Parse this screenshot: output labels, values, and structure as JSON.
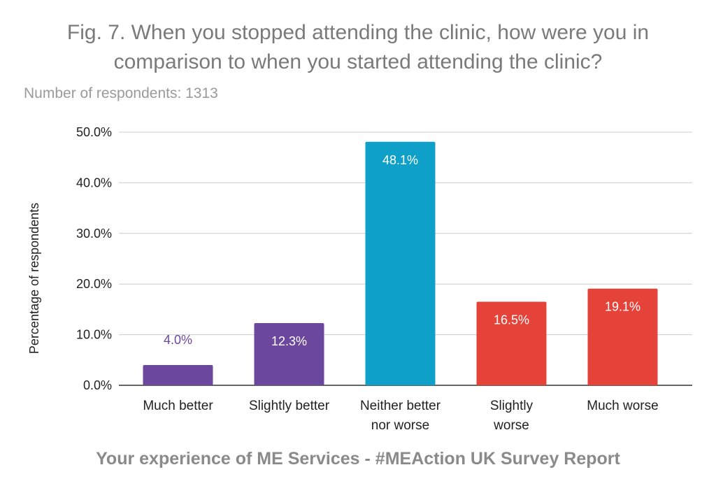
{
  "chart_data": {
    "type": "bar",
    "title": "Fig. 7. When you stopped attending the clinic, how were you in comparison to when you started attending the clinic?",
    "subtitle": "Number of respondents: 1313",
    "ylabel": "Percentage of respondents",
    "xlabel": "",
    "ylim": [
      0,
      50
    ],
    "yticks": [
      0,
      10,
      20,
      30,
      40,
      50
    ],
    "ytick_labels": [
      "0.0%",
      "10.0%",
      "20.0%",
      "30.0%",
      "40.0%",
      "50.0%"
    ],
    "grid": true,
    "categories": [
      [
        "Much better"
      ],
      [
        "Slightly better"
      ],
      [
        "Neither better",
        "nor worse"
      ],
      [
        "Slightly",
        "worse"
      ],
      [
        "Much worse"
      ]
    ],
    "values": [
      4.0,
      12.3,
      48.1,
      16.5,
      19.1
    ],
    "data_labels": [
      "4.0%",
      "12.3%",
      "48.1%",
      "16.5%",
      "19.1%"
    ],
    "colors": [
      "#6b479d",
      "#6b479d",
      "#0ea0c9",
      "#e5433a",
      "#e5433a"
    ],
    "footer": "Your experience of ME Services - #MEAction UK Survey Report"
  }
}
